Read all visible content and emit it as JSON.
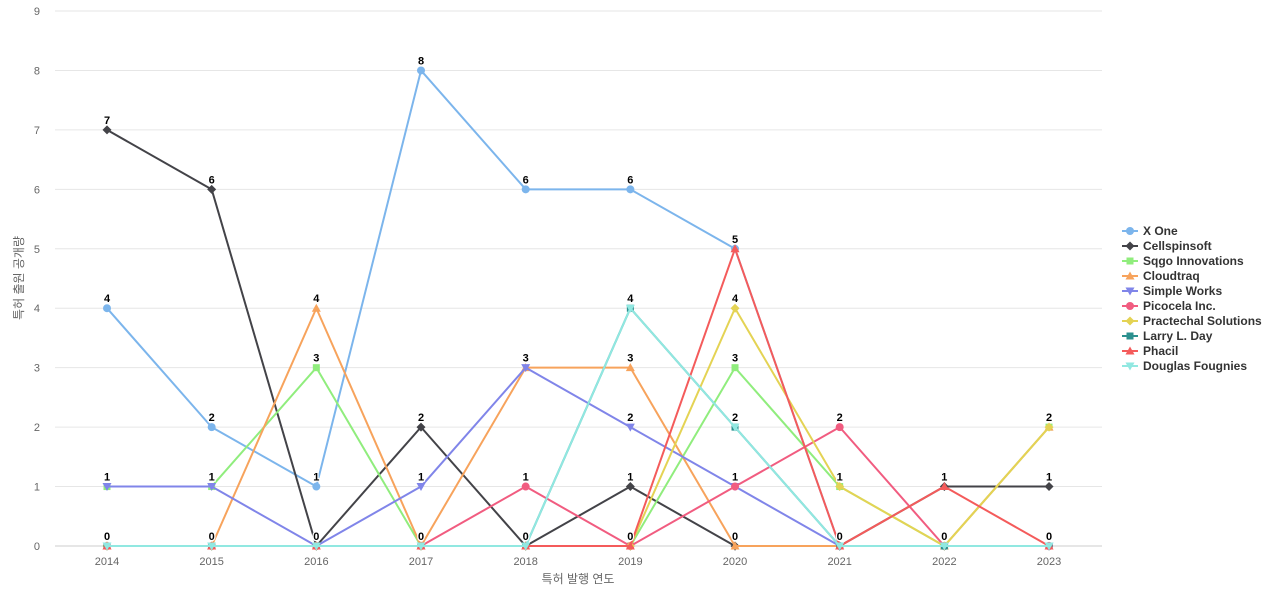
{
  "chart_data": {
    "type": "line",
    "title": "",
    "xlabel": "특허 발행 연도",
    "ylabel": "특허 출원 공개량",
    "x": [
      "2014",
      "2015",
      "2016",
      "2017",
      "2018",
      "2019",
      "2020",
      "2021",
      "2022",
      "2023"
    ],
    "ylim": [
      0,
      9
    ],
    "yticks": [
      0,
      1,
      2,
      3,
      4,
      5,
      6,
      7,
      8,
      9
    ],
    "grid": "horizontal",
    "legend_position": "right",
    "series": [
      {
        "name": "X One",
        "color": "#7cb5ec",
        "marker": "circle",
        "values": [
          4,
          2,
          1,
          8,
          6,
          6,
          5,
          0,
          0,
          0
        ]
      },
      {
        "name": "Cellspinsoft",
        "color": "#434348",
        "marker": "diamond",
        "values": [
          7,
          6,
          0,
          2,
          0,
          1,
          0,
          0,
          1,
          1
        ]
      },
      {
        "name": "Sqgo Innovations",
        "color": "#90ed7d",
        "marker": "square",
        "values": [
          1,
          1,
          3,
          0,
          0,
          0,
          3,
          1,
          0,
          2
        ]
      },
      {
        "name": "Cloudtraq",
        "color": "#f7a35c",
        "marker": "triangle",
        "values": [
          0,
          0,
          4,
          0,
          3,
          3,
          0,
          0,
          0,
          2
        ]
      },
      {
        "name": "Simple Works",
        "color": "#8085e9",
        "marker": "triangle-down",
        "values": [
          1,
          1,
          0,
          1,
          3,
          2,
          1,
          0,
          0,
          0
        ]
      },
      {
        "name": "Picocela Inc.",
        "color": "#f15c80",
        "marker": "circle",
        "values": [
          0,
          0,
          0,
          0,
          1,
          0,
          1,
          2,
          0,
          0
        ]
      },
      {
        "name": "Practechal Solutions",
        "color": "#e4d354",
        "marker": "diamond",
        "values": [
          0,
          0,
          0,
          0,
          0,
          0,
          4,
          1,
          0,
          2
        ]
      },
      {
        "name": "Larry L. Day",
        "color": "#2b908f",
        "marker": "square",
        "values": [
          0,
          0,
          0,
          0,
          0,
          4,
          2,
          0,
          0,
          0
        ]
      },
      {
        "name": "Phacil",
        "color": "#f45b5b",
        "marker": "triangle",
        "values": [
          0,
          0,
          0,
          0,
          0,
          0,
          5,
          0,
          1,
          0
        ]
      },
      {
        "name": "Douglas Fougnies",
        "color": "#91e8e1",
        "marker": "triangle-down",
        "values": [
          0,
          0,
          0,
          0,
          0,
          4,
          2,
          0,
          0,
          0
        ]
      }
    ],
    "data_labels": [
      {
        "x": "2014",
        "value": 7
      },
      {
        "x": "2014",
        "value": 4
      },
      {
        "x": "2014",
        "value": 1
      },
      {
        "x": "2014",
        "value": 0
      },
      {
        "x": "2015",
        "value": 6
      },
      {
        "x": "2015",
        "value": 2
      },
      {
        "x": "2015",
        "value": 1
      },
      {
        "x": "2015",
        "value": 0
      },
      {
        "x": "2016",
        "value": 4
      },
      {
        "x": "2016",
        "value": 3
      },
      {
        "x": "2016",
        "value": 1
      },
      {
        "x": "2016",
        "value": 0
      },
      {
        "x": "2017",
        "value": 8
      },
      {
        "x": "2017",
        "value": 2
      },
      {
        "x": "2017",
        "value": 1
      },
      {
        "x": "2017",
        "value": 0
      },
      {
        "x": "2018",
        "value": 6
      },
      {
        "x": "2018",
        "value": 3
      },
      {
        "x": "2018",
        "value": 1
      },
      {
        "x": "2018",
        "value": 0
      },
      {
        "x": "2019",
        "value": 6
      },
      {
        "x": "2019",
        "value": 4
      },
      {
        "x": "2019",
        "value": 3
      },
      {
        "x": "2019",
        "value": 2
      },
      {
        "x": "2019",
        "value": 1
      },
      {
        "x": "2019",
        "value": 0
      },
      {
        "x": "2020",
        "value": 5
      },
      {
        "x": "2020",
        "value": 4
      },
      {
        "x": "2020",
        "value": 3
      },
      {
        "x": "2020",
        "value": 2
      },
      {
        "x": "2020",
        "value": 1
      },
      {
        "x": "2020",
        "value": 0
      },
      {
        "x": "2021",
        "value": 2
      },
      {
        "x": "2021",
        "value": 1
      },
      {
        "x": "2021",
        "value": 0
      },
      {
        "x": "2022",
        "value": 1
      },
      {
        "x": "2022",
        "value": 0
      },
      {
        "x": "2023",
        "value": 2
      },
      {
        "x": "2023",
        "value": 1
      },
      {
        "x": "2023",
        "value": 0
      }
    ]
  }
}
